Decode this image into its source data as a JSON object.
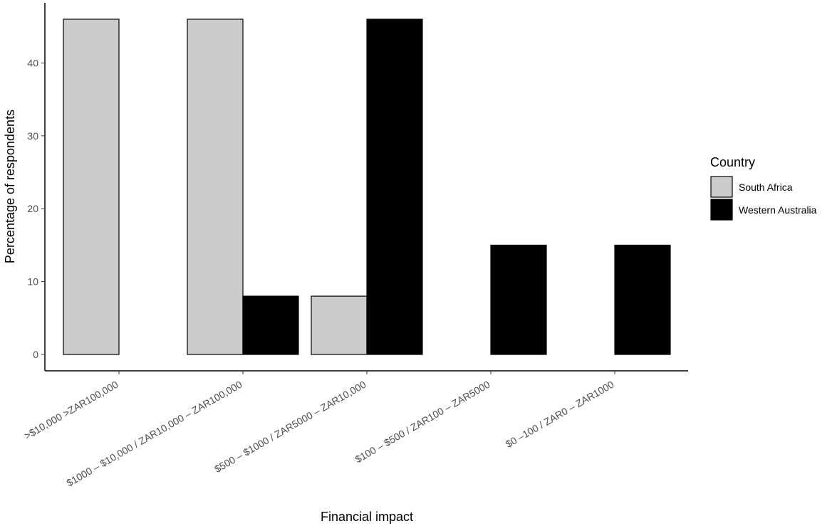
{
  "chart_data": {
    "type": "bar",
    "xlabel": "Financial impact",
    "ylabel": "Percentage of respondents",
    "ylim": [
      0,
      46
    ],
    "yticks": [
      0,
      10,
      20,
      30,
      40
    ],
    "grid": false,
    "legend": {
      "title": "Country",
      "position": "right"
    },
    "categories": [
      ">$10,000 >ZAR100,000",
      "$1000 – $10,000 / ZAR10,000 – ZAR100,000",
      "$500 – $1000 / ZAR5000 – ZAR10,000",
      "$100 – $500 / ZAR100 – ZAR5000",
      "$0 –100 / ZAR0 – ZAR1000"
    ],
    "series": [
      {
        "name": "South Africa",
        "color": "#cccccc",
        "values": [
          46,
          46,
          8,
          0,
          0
        ]
      },
      {
        "name": "Western Australia",
        "color": "#000000",
        "values": [
          0,
          8,
          46,
          15,
          15
        ]
      }
    ]
  }
}
